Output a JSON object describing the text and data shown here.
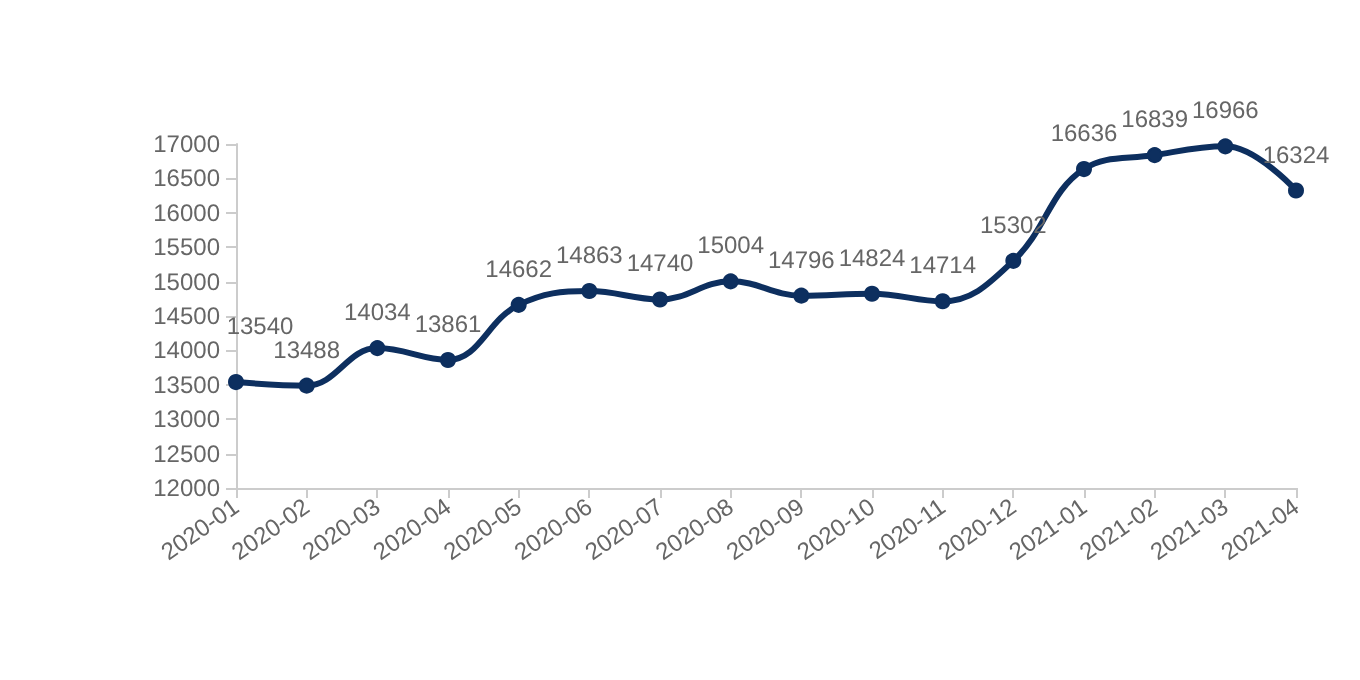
{
  "chart_data": {
    "type": "line",
    "categories": [
      "2020-01",
      "2020-02",
      "2020-03",
      "2020-04",
      "2020-05",
      "2020-06",
      "2020-07",
      "2020-08",
      "2020-09",
      "2020-10",
      "2020-11",
      "2020-12",
      "2021-01",
      "2021-02",
      "2021-03",
      "2021-04"
    ],
    "series": [
      {
        "color": "#0d2f5f",
        "values": [
          13540,
          13488,
          14034,
          13861,
          14662,
          14863,
          14740,
          15004,
          14796,
          14824,
          14714,
          15302,
          16636,
          16839,
          16966,
          16324
        ]
      }
    ],
    "ylim": [
      12000,
      17000
    ],
    "yticks": [
      12000,
      12500,
      13000,
      13500,
      14000,
      14500,
      15000,
      15500,
      16000,
      16500,
      17000
    ],
    "grid": false,
    "marker": "circle",
    "line_style": "solid",
    "data_labels": true
  }
}
